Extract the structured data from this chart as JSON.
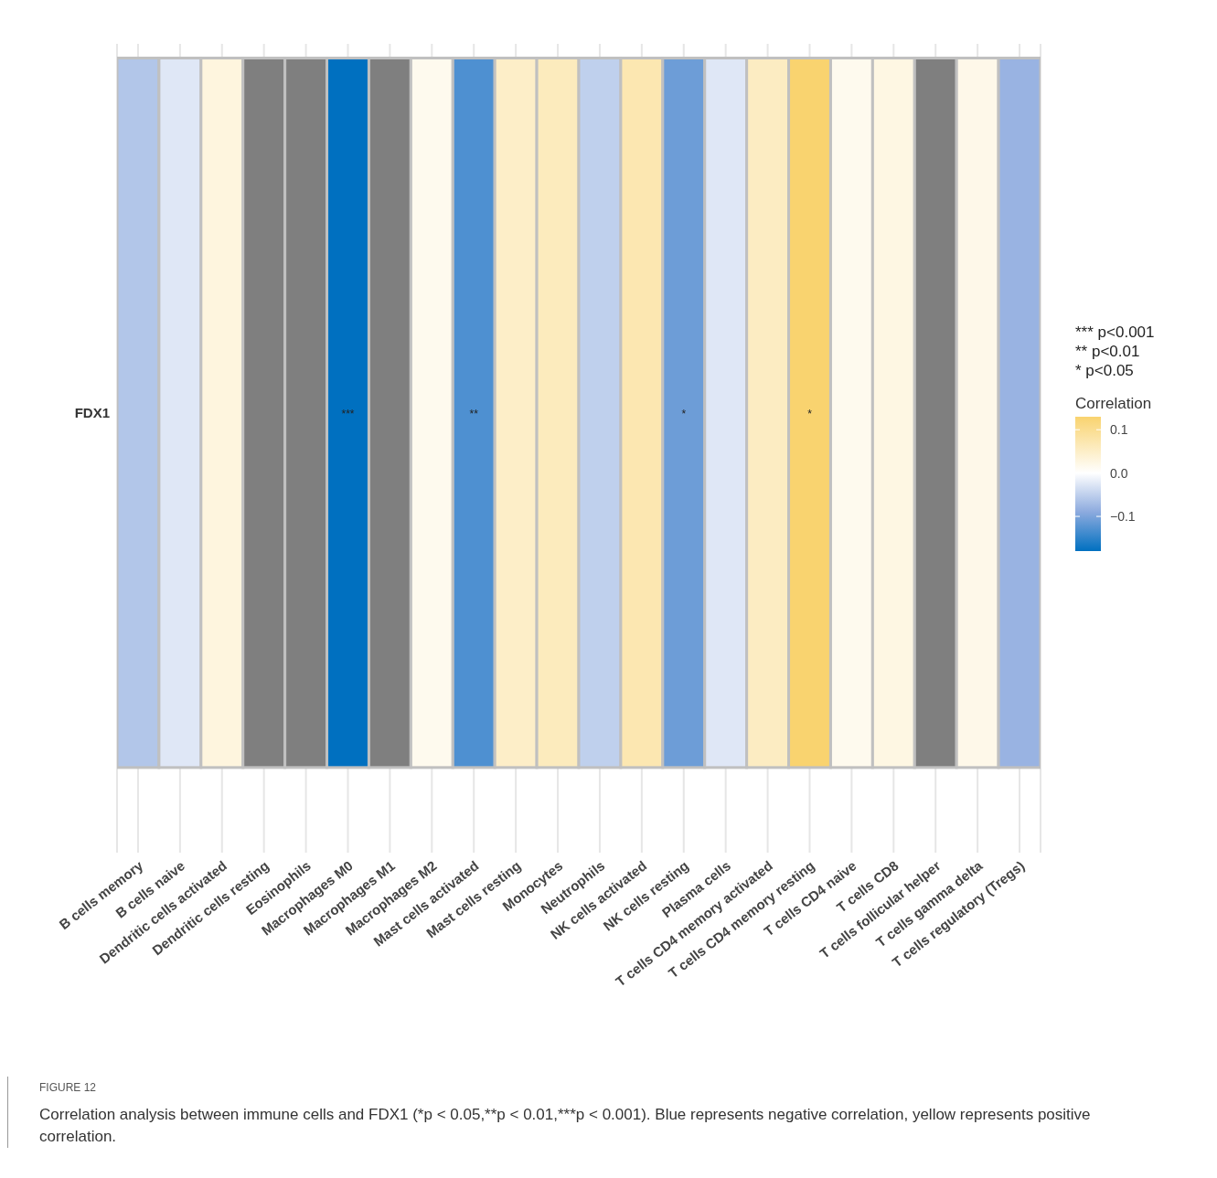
{
  "chart_data": {
    "type": "heatmap",
    "categories": [
      "B cells memory",
      "B cells naive",
      "Dendritic cells activated",
      "Dendritic cells resting",
      "Eosinophils",
      "Macrophages M0",
      "Macrophages M1",
      "Macrophages M2",
      "Mast cells activated",
      "Mast cells resting",
      "Monocytes",
      "Neutrophils",
      "NK cells activated",
      "NK cells resting",
      "Plasma cells",
      "T cells CD4 memory activated",
      "T cells CD4 memory resting",
      "T cells CD4 naive",
      "T cells CD8",
      "T cells follicular helper",
      "T cells gamma delta",
      "T cells regulatory (Tregs)"
    ],
    "y_categories": [
      "FDX1"
    ],
    "cells": [
      [
        -0.06,
        -0.025,
        0.03,
        null,
        null,
        -0.18,
        null,
        0.015,
        -0.13,
        0.05,
        0.06,
        -0.05,
        0.07,
        -0.11,
        -0.025,
        0.055,
        0.13,
        0.015,
        0.025,
        null,
        0.02,
        -0.08
      ]
    ],
    "cell_labels": [
      [
        null,
        null,
        null,
        null,
        null,
        "***",
        null,
        null,
        "**",
        null,
        null,
        null,
        null,
        "*",
        null,
        null,
        "*",
        null,
        null,
        null,
        null,
        null
      ]
    ],
    "clabel": "Correlation",
    "clim": [
      -0.18,
      0.13
    ],
    "cticks": [
      {
        "value": 0.1,
        "label": "0.1"
      },
      {
        "value": 0,
        "label": "0.0"
      },
      {
        "value": -0.1,
        "label": "−0.1"
      }
    ],
    "grid": "x",
    "annotations": [
      "*** p<0.001",
      "** p<0.01",
      "* p<0.05",
      "FIGURE 12",
      "Correlation analysis between immune cells and FDX1 (*p < 0.05,**p < 0.01,***p < 0.001). Blue represents negative correlation, yellow represents positive correlation."
    ]
  }
}
